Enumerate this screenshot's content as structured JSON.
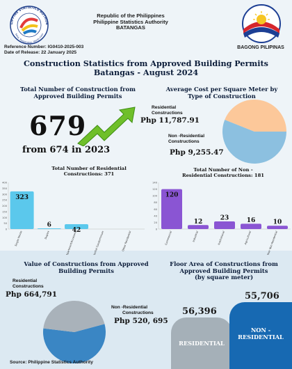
{
  "header": {
    "line1": "Republic of the Philippines",
    "line2": "Philippine Statistics Authority",
    "line3": "BATANGAS",
    "psa_logo_text": "PHILIPPINE STATISTICS AUTHORITY",
    "psa_logo_motto": "Solid, Responsive, World-class",
    "right_logo_label": "BAGONG PILIPINAS",
    "reference": "Reference Number: IG0410-2025-003",
    "release": "Date of Release: 22 January 2025"
  },
  "title": {
    "line1": "Construction Statistics from Approved Building Permits",
    "line2": "Batangas - August 2024"
  },
  "total": {
    "heading_l1": "Total Number  of Construction from",
    "heading_l2": "Approved Building Permits",
    "value": "679",
    "from_text": "from 674 in 2023"
  },
  "avg_cost": {
    "heading_l1": "Average Cost per Square Meter by",
    "heading_l2": "Type of Construction",
    "res_label_l1": "Residential",
    "res_label_l2": "Constructions",
    "res_value": "Php 11,787.91",
    "nonres_label_l1": "Non -Residential",
    "nonres_label_l2": "Constructions",
    "nonres_value": "Php 9,255.47"
  },
  "value_section": {
    "heading_l1": "Value of Constructions from Approved",
    "heading_l2": "Building Permits",
    "res_label_l1": "Residential",
    "res_label_l2": "Constructions",
    "res_value": "Php 664,791",
    "nonres_label_l1": "Non -Residential",
    "nonres_label_l2": "Constructions",
    "nonres_value": "Php 520, 695"
  },
  "floor_section": {
    "heading_l1": "Floor Area of Constructions from",
    "heading_l2": "Approved Building Permits",
    "heading_l3": "(by square meter)",
    "res_value": "56,396",
    "res_label": "RESIDENTIAL",
    "nonres_value": "55,706",
    "nonres_label_l1": "NON -",
    "nonres_label_l2": "RESIDENTIAL"
  },
  "source": "Source: Philippine Statistics Authority",
  "colors": {
    "res_bar": "#5bc8ec",
    "nonres_bar": "#8a55d3",
    "pie_blue": "#8cc0e0",
    "pie_peach": "#fcc89a",
    "value_pie_blue": "#3a86c4",
    "value_pie_gray": "#a9b2ba",
    "card_gray": "#a5b0b8",
    "card_blue": "#1769b2"
  },
  "chart_data": [
    {
      "id": "residential",
      "type": "bar",
      "title_l1": "Total Number of Residential",
      "title_l2": "Constructions: 371",
      "categories": [
        "Single House",
        "Duplex",
        "Apartment/Accesoria",
        "Residential Condominium",
        "Other Residential"
      ],
      "values": [
        323,
        6,
        42,
        0,
        0
      ],
      "ylim": [
        0,
        400
      ],
      "yticks": [
        0,
        50,
        100,
        150,
        200,
        250,
        300,
        350,
        400
      ],
      "grid": false,
      "legend": "none"
    },
    {
      "id": "nonresidential",
      "type": "bar",
      "title_l1": "Total Number of Non -",
      "title_l2": "Residential Constructions: 181",
      "categories": [
        "Commercial",
        "Industrial",
        "Institutional",
        "Agricultural",
        "Other Non-Residential"
      ],
      "values": [
        120,
        12,
        23,
        16,
        10
      ],
      "ylim": [
        0,
        140
      ],
      "yticks": [
        0,
        20,
        40,
        60,
        80,
        100,
        120,
        140
      ],
      "grid": false,
      "legend": "none"
    },
    {
      "id": "avg-cost-pie",
      "type": "pie",
      "labels": [
        "Residential Constructions",
        "Non -Residential Constructions"
      ],
      "values": [
        11787.91,
        9255.47
      ]
    },
    {
      "id": "value-pie",
      "type": "pie",
      "labels": [
        "Residential Constructions",
        "Non -Residential Constructions"
      ],
      "values": [
        664791,
        520695
      ]
    },
    {
      "id": "floor-area",
      "type": "bar",
      "categories": [
        "RESIDENTIAL",
        "NON - RESIDENTIAL"
      ],
      "values": [
        56396,
        55706
      ]
    }
  ]
}
